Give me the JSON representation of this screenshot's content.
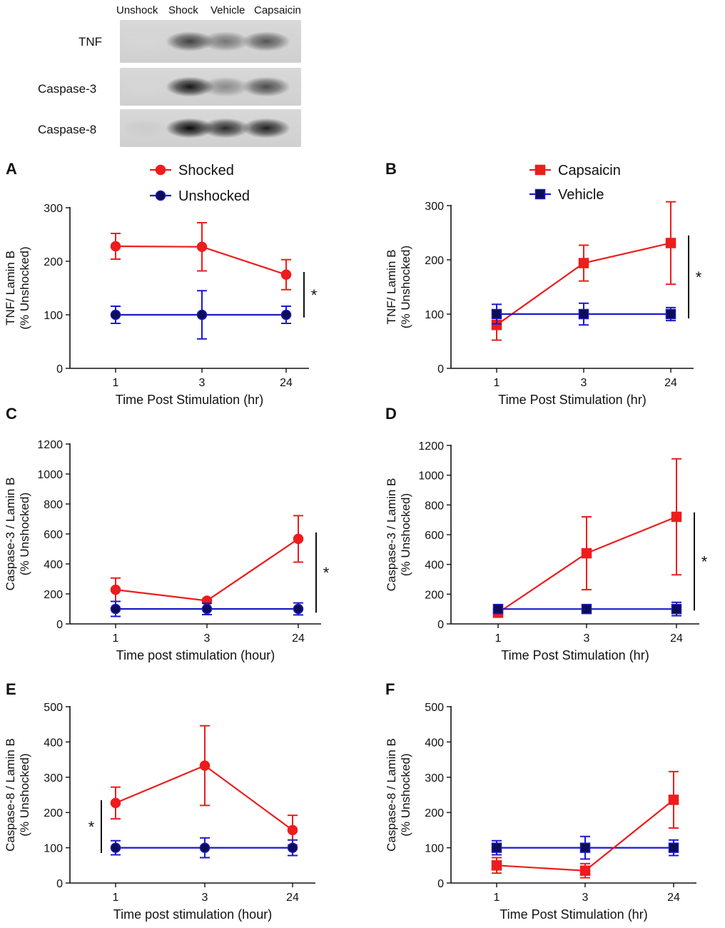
{
  "blot": {
    "lanes": [
      "Unshock",
      "Shock",
      "Vehicle",
      "Capsaicin"
    ],
    "rows": [
      {
        "label": "TNF",
        "intensity": [
          0.05,
          0.75,
          0.5,
          0.65
        ]
      },
      {
        "label": "Caspase-3",
        "intensity": [
          0.05,
          0.95,
          0.4,
          0.7
        ]
      },
      {
        "label": "Caspase-8",
        "intensity": [
          0.1,
          1.0,
          0.85,
          0.9
        ]
      }
    ]
  },
  "colors": {
    "red": "#ee1c1c",
    "blue": "#1a1acc",
    "dark_marker": "#0d0d55"
  },
  "chart_data": [
    {
      "panel": "A",
      "type": "line",
      "x_categories": [
        "1",
        "3",
        "24"
      ],
      "ylabel_line1": "TNF/ Lamin B",
      "ylabel_line2": "(% Unshocked)",
      "xlabel": "Time Post Stimulation (hr)",
      "ylim": [
        0,
        300
      ],
      "yticks": [
        0,
        100,
        200,
        300
      ],
      "legend": [
        "Shocked",
        "Unshocked"
      ],
      "marker": "circle",
      "significance": "*",
      "sig_range": [
        95,
        180
      ],
      "sig_side": "right",
      "series": [
        {
          "name": "Shocked",
          "color": "red",
          "values": [
            228,
            227,
            175
          ],
          "err": [
            24,
            45,
            28
          ]
        },
        {
          "name": "Unshocked",
          "color": "blue",
          "values": [
            100,
            100,
            100
          ],
          "err": [
            16,
            45,
            16
          ]
        }
      ]
    },
    {
      "panel": "B",
      "type": "line",
      "x_categories": [
        "1",
        "3",
        "24"
      ],
      "ylabel_line1": "TNF/ Lamin B",
      "ylabel_line2": "(% Unshocked)",
      "xlabel": "Time Post Stimulation (hr)",
      "ylim": [
        0,
        300
      ],
      "yticks": [
        0,
        100,
        200,
        300
      ],
      "legend": [
        "Capsaicin",
        "Vehicle"
      ],
      "marker": "square",
      "significance": "*",
      "sig_range": [
        92,
        245
      ],
      "sig_side": "right",
      "series": [
        {
          "name": "Capsaicin",
          "color": "red",
          "values": [
            80,
            194,
            231
          ],
          "err": [
            28,
            33,
            76
          ]
        },
        {
          "name": "Vehicle",
          "color": "blue",
          "values": [
            100,
            100,
            100
          ],
          "err": [
            18,
            20,
            12
          ]
        }
      ]
    },
    {
      "panel": "C",
      "type": "line",
      "x_categories": [
        "1",
        "3",
        "24"
      ],
      "ylabel_line1": "Caspase-3 / Lamin B",
      "ylabel_line2": "(% Unshocked)",
      "xlabel": "Time post stimulation (hour)",
      "ylim": [
        0,
        1200
      ],
      "yticks": [
        0,
        200,
        400,
        600,
        800,
        1000,
        1200
      ],
      "legend": [],
      "marker": "circle",
      "significance": "*",
      "sig_range": [
        75,
        610
      ],
      "sig_side": "right",
      "series": [
        {
          "name": "Shocked",
          "color": "red",
          "values": [
            228,
            155,
            567
          ],
          "err": [
            78,
            10,
            155
          ]
        },
        {
          "name": "Unshocked",
          "color": "blue",
          "values": [
            100,
            100,
            100
          ],
          "err": [
            50,
            38,
            40
          ]
        }
      ]
    },
    {
      "panel": "D",
      "type": "line",
      "x_categories": [
        "1",
        "3",
        "24"
      ],
      "ylabel_line1": "Caspase-3 / Lamin B",
      "ylabel_line2": "(% Unshocked)",
      "xlabel": "Time Post Stimulation (hr)",
      "ylim": [
        0,
        1200
      ],
      "yticks": [
        0,
        200,
        400,
        600,
        800,
        1000,
        1200
      ],
      "legend": [],
      "marker": "square",
      "significance": "*",
      "sig_range": [
        90,
        750
      ],
      "sig_side": "right",
      "series": [
        {
          "name": "Capsaicin",
          "color": "red",
          "values": [
            75,
            475,
            720
          ],
          "err": [
            12,
            245,
            390
          ]
        },
        {
          "name": "Vehicle",
          "color": "blue",
          "values": [
            100,
            100,
            100
          ],
          "err": [
            10,
            12,
            45
          ]
        }
      ]
    },
    {
      "panel": "E",
      "type": "line",
      "x_categories": [
        "1",
        "3",
        "24"
      ],
      "ylabel_line1": "Caspase-8 / Lamin B",
      "ylabel_line2": "(% Unshocked)",
      "xlabel": "Time post stimulation (hour)",
      "ylim": [
        0,
        500
      ],
      "yticks": [
        0,
        100,
        200,
        300,
        400,
        500
      ],
      "legend": [],
      "marker": "circle",
      "significance": "*",
      "sig_range": [
        85,
        235
      ],
      "sig_side": "left",
      "series": [
        {
          "name": "Shocked",
          "color": "red",
          "values": [
            227,
            333,
            150
          ],
          "err": [
            45,
            113,
            42
          ]
        },
        {
          "name": "Unshocked",
          "color": "blue",
          "values": [
            100,
            100,
            100
          ],
          "err": [
            20,
            28,
            22
          ]
        }
      ]
    },
    {
      "panel": "F",
      "type": "line",
      "x_categories": [
        "1",
        "3",
        "24"
      ],
      "ylabel_line1": "Caspase-8 / Lamin B",
      "ylabel_line2": "(% Unshocked)",
      "xlabel": "Time Post Stimulation (hr)",
      "ylim": [
        0,
        500
      ],
      "yticks": [
        0,
        100,
        200,
        300,
        400,
        500
      ],
      "legend": [],
      "marker": "square",
      "significance": "",
      "sig_range": null,
      "sig_side": "right",
      "series": [
        {
          "name": "Vehicle",
          "color": "blue",
          "values": [
            100,
            100,
            100
          ],
          "err": [
            20,
            32,
            22
          ]
        },
        {
          "name": "Capsaicin",
          "color": "red",
          "values": [
            50,
            35,
            236
          ],
          "err": [
            22,
            20,
            80
          ]
        }
      ]
    }
  ]
}
